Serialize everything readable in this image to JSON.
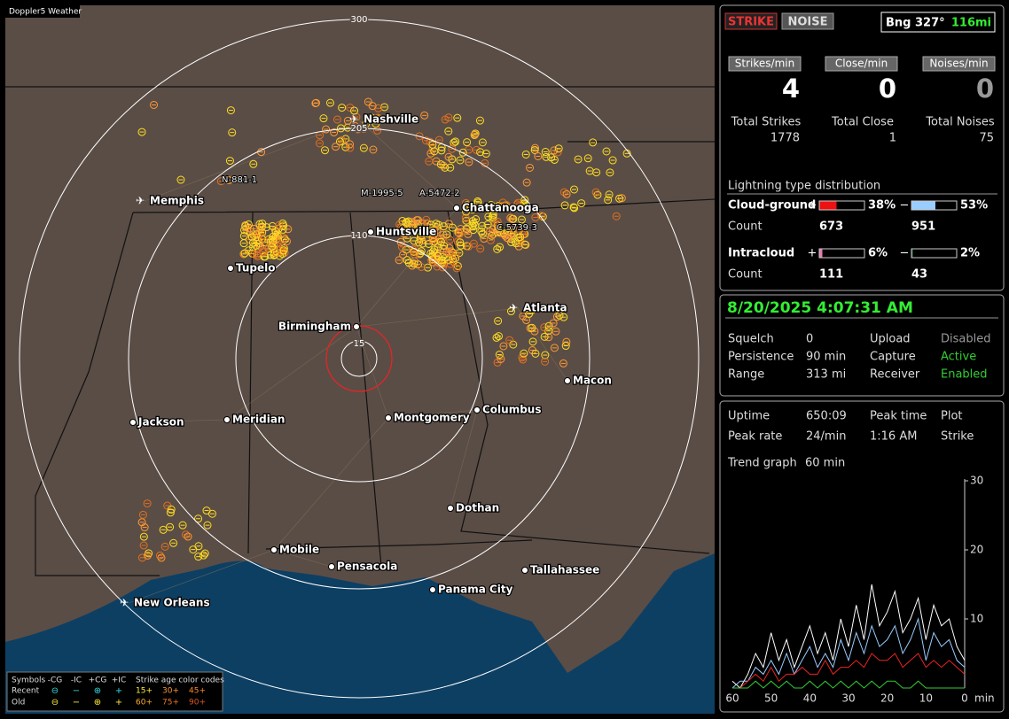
{
  "map": {
    "title": "Doppler5 Weather",
    "range_rings": [
      "300",
      "205",
      "110",
      "15"
    ],
    "cities": [
      "Nashville",
      "Memphis",
      "Tupelo",
      "Huntsville",
      "Chattanooga",
      "Atlanta",
      "Birmingham",
      "Macon",
      "Jackson",
      "Meridian",
      "Montgomery",
      "Columbus",
      "Dothan",
      "Mobile",
      "Pensacola",
      "Tallahassee",
      "Panama City",
      "New Orleans"
    ],
    "stations": [
      "N-881-1",
      "M-1995-5",
      "A-5472-2",
      "C-5739-3"
    ],
    "legend": {
      "symbols": "Symbols",
      "types": [
        "-CG",
        "-IC",
        "+CG",
        "+IC"
      ],
      "age_title": "Strike age color codes",
      "rows": [
        {
          "label": "Recent",
          "ages": [
            "15+",
            "30+",
            "45+"
          ]
        },
        {
          "label": "Old",
          "ages": [
            "60+",
            "75+",
            "90+"
          ]
        }
      ]
    }
  },
  "panel": {
    "modes": [
      "STRIKE",
      "NOISE"
    ],
    "bearing": "Bng 327°",
    "distance": "116mi",
    "rates": [
      {
        "label": "Strikes/min",
        "value": "4",
        "total_label": "Total Strikes",
        "total": "1778"
      },
      {
        "label": "Close/min",
        "value": "0",
        "total_label": "Total Close",
        "total": "1"
      },
      {
        "label": "Noises/min",
        "value": "0",
        "total_label": "Total Noises",
        "total": "75"
      }
    ],
    "distribution": {
      "title": "Lightning type distribution",
      "count_label": "Count",
      "signs": [
        "+",
        "−"
      ],
      "types": [
        {
          "name": "Cloud-ground",
          "pos": {
            "value": 38,
            "label": "38%"
          },
          "neg": {
            "value": 53,
            "label": "53%"
          },
          "pos_count": "673",
          "neg_count": "951"
        },
        {
          "name": "Intracloud",
          "pos": {
            "value": 6,
            "label": "6%"
          },
          "neg": {
            "value": 2,
            "label": "2%"
          },
          "pos_count": "111",
          "neg_count": "43"
        }
      ]
    },
    "datetime": "8/20/2025 4:07:31 AM",
    "settings": [
      [
        "Squelch",
        "0",
        "Upload",
        "Disabled"
      ],
      [
        "Persistence",
        "90 min",
        "Capture",
        "Active"
      ],
      [
        "Range",
        "313 mi",
        "Receiver",
        "Enabled"
      ]
    ],
    "stats": [
      [
        "Uptime",
        "650:09",
        "Peak time",
        "Plot"
      ],
      [
        "Peak rate",
        "24/min",
        "1:16 AM",
        "Strike"
      ]
    ],
    "trend_label": "Trend graph",
    "trend_window": "60 min",
    "trend": {
      "x": [
        60,
        58,
        56,
        54,
        52,
        50,
        48,
        46,
        44,
        42,
        40,
        38,
        36,
        34,
        32,
        30,
        28,
        26,
        24,
        22,
        20,
        18,
        16,
        14,
        12,
        10,
        8,
        6,
        4,
        2,
        0
      ],
      "xlim": [
        60,
        0
      ],
      "ylim": [
        0,
        30
      ],
      "xticks": [
        60,
        50,
        40,
        30,
        20,
        10,
        0
      ],
      "yticks": [
        10,
        20,
        30
      ],
      "x_unit": "min",
      "series": [
        {
          "color": "#ffffff",
          "values": [
            1,
            0,
            2,
            5,
            3,
            8,
            4,
            7,
            3,
            6,
            9,
            5,
            8,
            4,
            10,
            6,
            12,
            7,
            15,
            9,
            11,
            14,
            8,
            10,
            13,
            7,
            12,
            9,
            10,
            6,
            4
          ]
        },
        {
          "color": "#99ccff",
          "values": [
            0,
            1,
            1,
            3,
            2,
            4,
            2,
            5,
            2,
            4,
            6,
            3,
            5,
            3,
            7,
            4,
            8,
            5,
            9,
            6,
            7,
            9,
            5,
            7,
            10,
            4,
            8,
            6,
            7,
            4,
            3
          ]
        },
        {
          "color": "#ee2222",
          "values": [
            0,
            0,
            1,
            2,
            1,
            3,
            1,
            2,
            2,
            3,
            2,
            2,
            4,
            2,
            3,
            3,
            4,
            3,
            5,
            4,
            4,
            5,
            3,
            4,
            5,
            3,
            4,
            3,
            4,
            3,
            2
          ]
        },
        {
          "color": "#33cc33",
          "values": [
            0,
            0,
            0,
            1,
            0,
            1,
            0,
            1,
            0,
            0,
            1,
            0,
            1,
            0,
            1,
            0,
            1,
            0,
            1,
            0,
            1,
            1,
            0,
            0,
            1,
            0,
            0,
            0,
            0,
            0,
            0
          ]
        }
      ]
    }
  }
}
